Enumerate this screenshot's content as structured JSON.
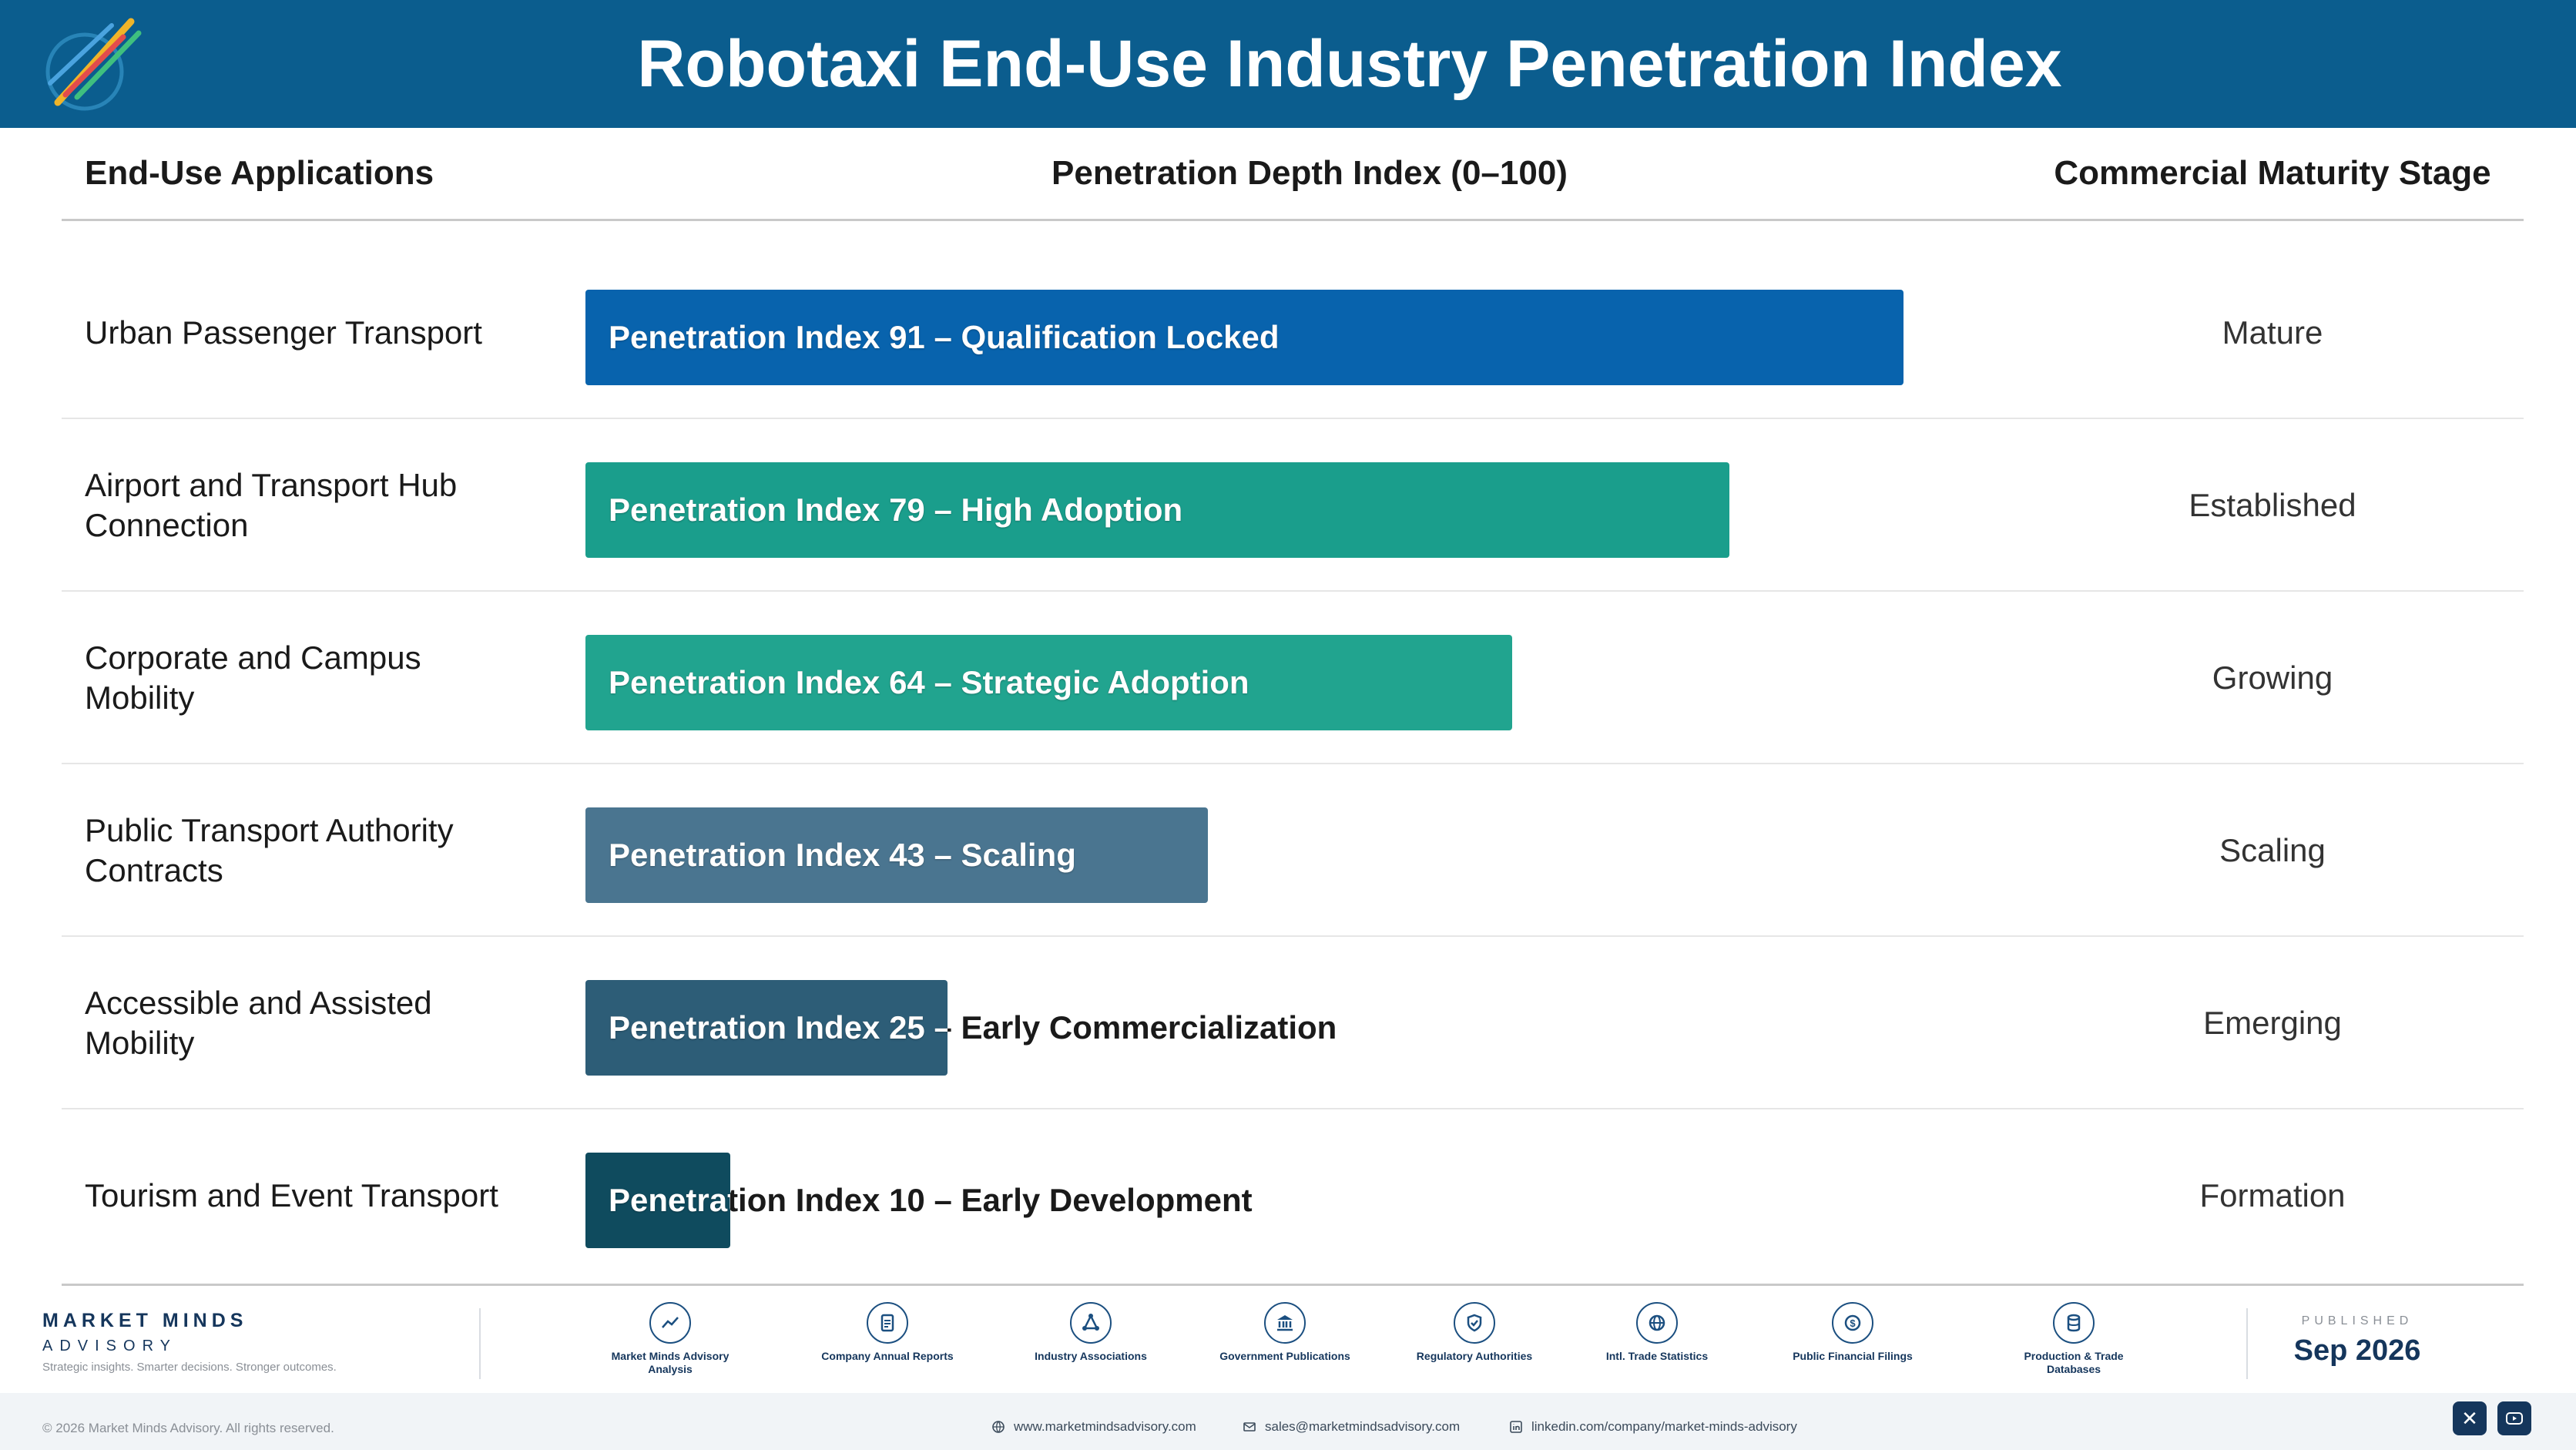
{
  "header": {
    "title": "Robotaxi End-Use Industry Penetration Index"
  },
  "columns": {
    "applications": "End-Use Applications",
    "depth": "Penetration Depth Index (0–100)",
    "stage": "Commercial Maturity Stage"
  },
  "chart_data": {
    "type": "bar",
    "orientation": "horizontal",
    "title": "Robotaxi End-Use Industry Penetration Index",
    "xlabel": "Penetration Depth Index (0–100)",
    "xlim": [
      0,
      100
    ],
    "categories": [
      "Urban Passenger Transport",
      "Airport and Transport Hub Connection",
      "Corporate and Campus Mobility",
      "Public Transport Authority Contracts",
      "Accessible and Assisted Mobility",
      "Tourism and Event Transport"
    ],
    "values": [
      91,
      79,
      64,
      43,
      25,
      10
    ],
    "bar_labels": [
      "Penetration Index 91 – Qualification Locked",
      "Penetration Index 79 – High Adoption",
      "Penetration Index 64 – Strategic Adoption",
      "Penetration Index 43 – Scaling",
      "Penetration Index 25 – Early Commercialization",
      "Penetration Index 10 – Early Development"
    ],
    "stages": [
      "Mature",
      "Established",
      "Growing",
      "Scaling",
      "Emerging",
      "Formation"
    ],
    "colors": [
      "#0863ad",
      "#1a9e8c",
      "#21a48f",
      "#4a7590",
      "#2d5d77",
      "#0f4b5e"
    ],
    "grid": false,
    "legend": "none"
  },
  "footer": {
    "brand_name": "MARKET MINDS",
    "brand_sub": "ADVISORY",
    "tagline": "Strategic insights. Smarter decisions. Stronger outcomes.",
    "sources": [
      {
        "label": "Market Minds Advisory Analysis",
        "icon": "chart-icon"
      },
      {
        "label": "Company Annual Reports",
        "icon": "document-icon"
      },
      {
        "label": "Industry Associations",
        "icon": "network-icon"
      },
      {
        "label": "Government Publications",
        "icon": "bank-icon"
      },
      {
        "label": "Regulatory Authorities",
        "icon": "shield-icon"
      },
      {
        "label": "Intl. Trade Statistics",
        "icon": "globe-icon"
      },
      {
        "label": "Public Financial Filings",
        "icon": "coin-icon"
      },
      {
        "label": "Production & Trade Databases",
        "icon": "database-icon"
      }
    ],
    "published_label": "PUBLISHED",
    "published_date": "Sep 2026",
    "copyright": "© 2026 Market Minds Advisory. All rights reserved.",
    "website": "www.marketmindsadvisory.com",
    "email": "sales@marketmindsadvisory.com",
    "linkedin": "linkedin.com/company/market-minds-advisory"
  }
}
